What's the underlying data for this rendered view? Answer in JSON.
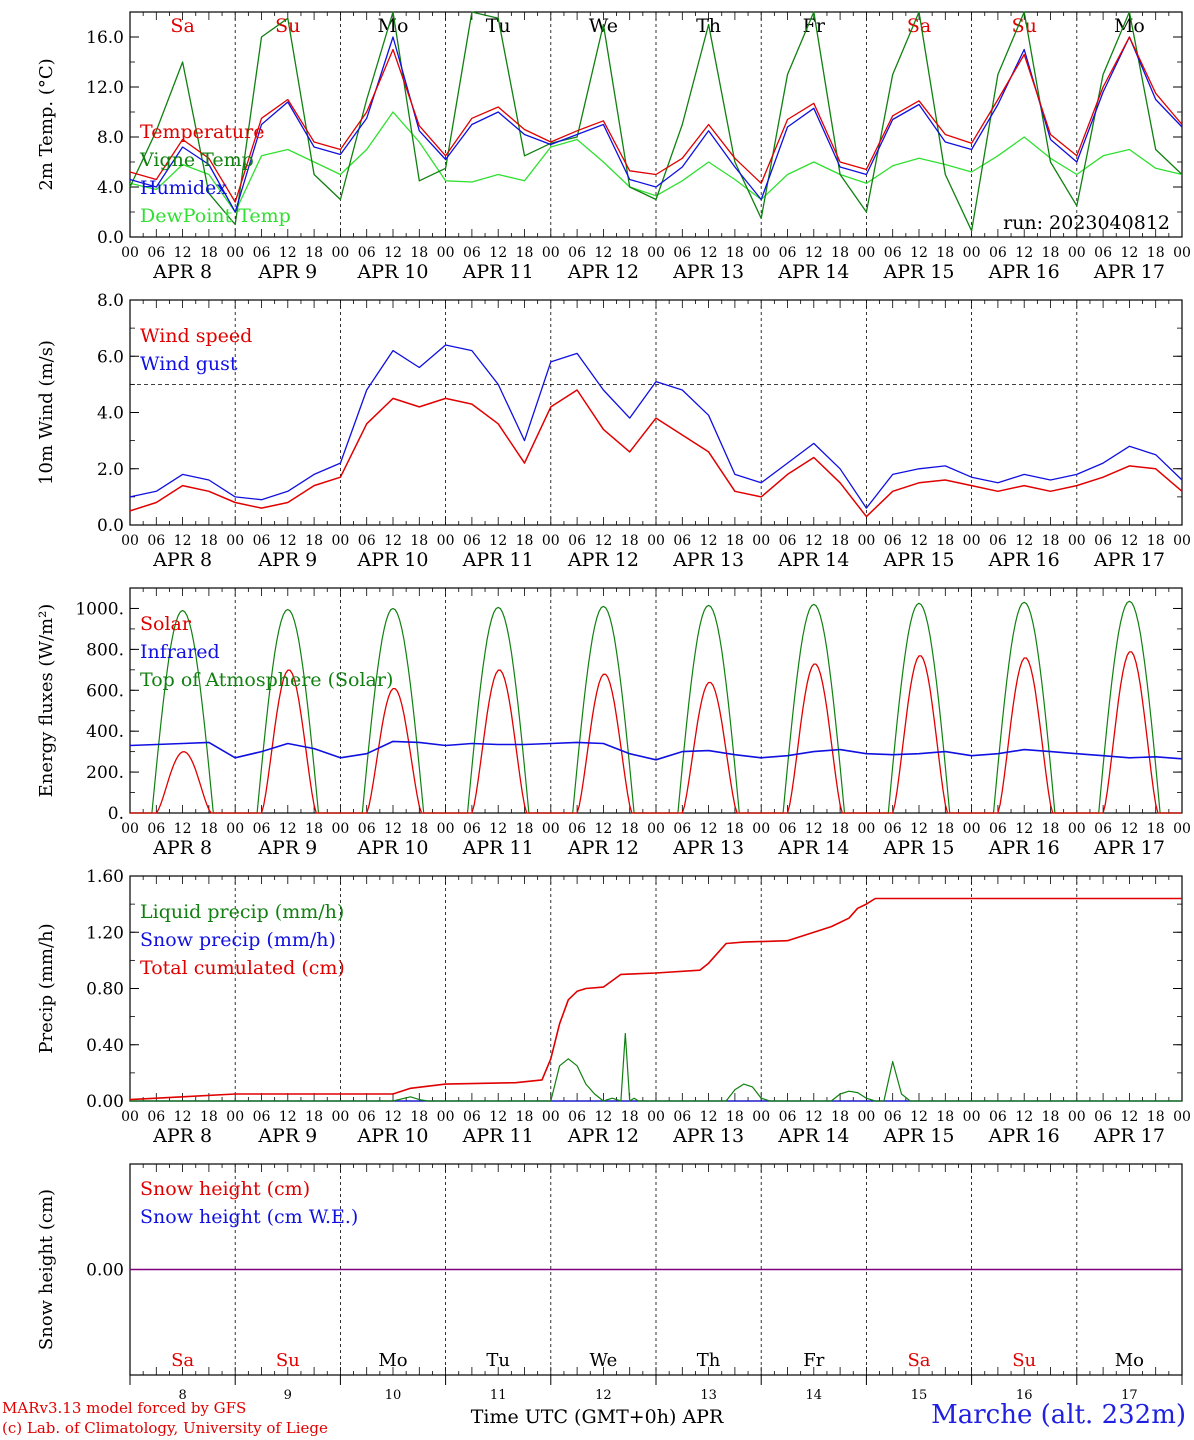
{
  "footer": {
    "model_line": "MARv3.13 model forced by GFS",
    "lab_line": "(c) Lab. of Climatology, University of Liege",
    "xaxis_title": "Time UTC (GMT+0h) APR",
    "station": "Marche (alt. 232m)"
  },
  "colors": {
    "red": "#e00000",
    "green": "#108010",
    "blue": "#1010e0",
    "lightgreen": "#30e030",
    "purple": "#800080"
  },
  "chart_data": [
    {
      "type": "line",
      "ylabel": "2m Temp. (°C)",
      "ylim": [
        0,
        18
      ],
      "yticks": [
        "0.0",
        "4.0",
        "8.0",
        "12.0",
        "16.0"
      ],
      "ytick_values": [
        0,
        4,
        8,
        12,
        16
      ],
      "run_label": "run: 2023040812",
      "weekdays": [
        "Sa",
        "Su",
        "Mo",
        "Tu",
        "We",
        "Th",
        "Fr",
        "Sa",
        "Su",
        "Mo"
      ],
      "weekday_colors": [
        "#e00000",
        "#e00000",
        "#000000",
        "#000000",
        "#000000",
        "#000000",
        "#000000",
        "#e00000",
        "#e00000",
        "#000000"
      ],
      "hour_labels": [
        "00",
        "06",
        "12",
        "18"
      ],
      "day_labels": [
        "APR 8",
        "APR 9",
        "APR 10",
        "APR 11",
        "APR 12",
        "APR 13",
        "APR 14",
        "APR 15",
        "APR 16",
        "APR 17"
      ],
      "x_unit": "hours since APR 8 00 UTC",
      "series": [
        {
          "name": "Temperature",
          "color": "#e00000",
          "x": [
            0,
            6,
            12,
            18,
            24,
            30,
            36,
            42,
            48,
            54,
            60,
            66,
            72,
            78,
            84,
            90,
            96,
            102,
            108,
            114,
            120,
            126,
            132,
            138,
            144,
            150,
            156,
            162,
            168,
            174,
            180,
            186,
            192,
            198,
            204,
            210,
            216,
            222,
            228,
            234,
            240
          ],
          "values": [
            5.2,
            4.6,
            7.8,
            6.3,
            2.8,
            9.5,
            11.0,
            7.6,
            7.0,
            10.0,
            15.0,
            8.9,
            6.5,
            9.5,
            10.4,
            8.6,
            7.6,
            8.5,
            9.3,
            5.3,
            5.0,
            6.3,
            9.0,
            6.3,
            4.3,
            9.4,
            10.7,
            6.0,
            5.4,
            9.7,
            10.9,
            8.2,
            7.5,
            11.0,
            14.6,
            8.2,
            6.5,
            12.0,
            16.0,
            11.5,
            9.0
          ]
        },
        {
          "name": "Vigne Temp",
          "color": "#108010",
          "x": [
            0,
            6,
            12,
            18,
            24,
            30,
            36,
            42,
            48,
            54,
            60,
            66,
            72,
            78,
            84,
            90,
            96,
            102,
            108,
            114,
            120,
            126,
            132,
            138,
            144,
            150,
            156,
            162,
            168,
            174,
            180,
            186,
            192,
            198,
            204,
            210,
            216,
            222,
            228,
            234,
            240
          ],
          "values": [
            4.0,
            8.5,
            14.0,
            3.5,
            1.0,
            16.0,
            17.5,
            5.0,
            3.0,
            11.0,
            18.0,
            4.5,
            5.5,
            18.0,
            17.5,
            6.5,
            7.5,
            8.0,
            17.0,
            4.0,
            3.0,
            9.0,
            17.0,
            6.0,
            1.5,
            13.0,
            18.0,
            5.0,
            2.0,
            13.0,
            18.0,
            5.0,
            0.5,
            13.0,
            18.0,
            6.0,
            2.5,
            13.0,
            18.0,
            7.0,
            5.0
          ]
        },
        {
          "name": "Humidex",
          "color": "#1010e0",
          "x": [
            0,
            6,
            12,
            18,
            24,
            30,
            36,
            42,
            48,
            54,
            60,
            66,
            72,
            78,
            84,
            90,
            96,
            102,
            108,
            114,
            120,
            126,
            132,
            138,
            144,
            150,
            156,
            162,
            168,
            174,
            180,
            186,
            192,
            198,
            204,
            210,
            216,
            222,
            228,
            234,
            240
          ],
          "values": [
            4.6,
            4.0,
            7.2,
            5.8,
            2.0,
            9.0,
            10.8,
            7.2,
            6.6,
            9.5,
            16.0,
            8.5,
            6.2,
            9.0,
            10.0,
            8.2,
            7.4,
            8.2,
            9.0,
            4.6,
            4.0,
            5.6,
            8.5,
            5.6,
            3.0,
            8.8,
            10.3,
            5.6,
            5.0,
            9.4,
            10.6,
            7.6,
            7.0,
            10.6,
            15.0,
            7.8,
            6.0,
            11.6,
            16.0,
            11.0,
            8.8
          ]
        },
        {
          "name": "DewPoint Temp",
          "color": "#30e030",
          "x": [
            0,
            6,
            12,
            18,
            24,
            30,
            36,
            42,
            48,
            54,
            60,
            66,
            72,
            78,
            84,
            90,
            96,
            102,
            108,
            114,
            120,
            126,
            132,
            138,
            144,
            150,
            156,
            162,
            168,
            174,
            180,
            186,
            192,
            198,
            204,
            210,
            216,
            222,
            228,
            234,
            240
          ],
          "values": [
            4.3,
            3.8,
            5.8,
            5.0,
            2.0,
            6.5,
            7.0,
            6.0,
            5.0,
            7.0,
            10.0,
            7.6,
            4.5,
            4.4,
            5.0,
            4.5,
            7.2,
            7.8,
            6.0,
            4.0,
            3.3,
            4.5,
            6.0,
            4.6,
            3.0,
            5.0,
            6.0,
            5.0,
            4.3,
            5.7,
            6.3,
            5.8,
            5.2,
            6.5,
            8.0,
            6.3,
            5.0,
            6.5,
            7.0,
            5.5,
            5.0
          ]
        }
      ]
    },
    {
      "type": "line",
      "ylabel": "10m Wind (m/s)",
      "ylim": [
        0,
        8
      ],
      "yticks": [
        "0.0",
        "2.0",
        "4.0",
        "6.0",
        "8.0"
      ],
      "ytick_values": [
        0,
        2,
        4,
        6,
        8
      ],
      "reference_line": 5,
      "hour_labels": [
        "00",
        "06",
        "12",
        "18"
      ],
      "day_labels": [
        "APR 8",
        "APR 9",
        "APR 10",
        "APR 11",
        "APR 12",
        "APR 13",
        "APR 14",
        "APR 15",
        "APR 16",
        "APR 17"
      ],
      "x_unit": "hours since APR 8 00 UTC",
      "series": [
        {
          "name": "Wind speed",
          "color": "#e00000",
          "x": [
            0,
            6,
            12,
            18,
            24,
            30,
            36,
            42,
            48,
            54,
            60,
            66,
            72,
            78,
            84,
            90,
            96,
            102,
            108,
            114,
            120,
            126,
            132,
            138,
            144,
            150,
            156,
            162,
            168,
            174,
            180,
            186,
            192,
            198,
            204,
            210,
            216,
            222,
            228,
            234,
            240
          ],
          "values": [
            0.5,
            0.8,
            1.4,
            1.2,
            0.8,
            0.6,
            0.8,
            1.4,
            1.7,
            3.6,
            4.5,
            4.2,
            4.5,
            4.3,
            3.6,
            2.2,
            4.2,
            4.8,
            3.4,
            2.6,
            3.8,
            3.2,
            2.6,
            1.2,
            1.0,
            1.8,
            2.4,
            1.5,
            0.3,
            1.2,
            1.5,
            1.6,
            1.4,
            1.2,
            1.4,
            1.2,
            1.4,
            1.7,
            2.1,
            2.0,
            1.2
          ]
        },
        {
          "name": "Wind gust",
          "color": "#1010e0",
          "x": [
            0,
            6,
            12,
            18,
            24,
            30,
            36,
            42,
            48,
            54,
            60,
            66,
            72,
            78,
            84,
            90,
            96,
            102,
            108,
            114,
            120,
            126,
            132,
            138,
            144,
            150,
            156,
            162,
            168,
            174,
            180,
            186,
            192,
            198,
            204,
            210,
            216,
            222,
            228,
            234,
            240
          ],
          "values": [
            1.0,
            1.2,
            1.8,
            1.6,
            1.0,
            0.9,
            1.2,
            1.8,
            2.2,
            4.8,
            6.2,
            5.6,
            6.4,
            6.2,
            5.0,
            3.0,
            5.8,
            6.1,
            4.8,
            3.8,
            5.1,
            4.8,
            3.9,
            1.8,
            1.5,
            2.2,
            2.9,
            2.0,
            0.6,
            1.8,
            2.0,
            2.1,
            1.7,
            1.5,
            1.8,
            1.6,
            1.8,
            2.2,
            2.8,
            2.5,
            1.6
          ]
        }
      ]
    },
    {
      "type": "line",
      "ylabel": "Energy fluxes (W/m²)",
      "ylim": [
        0,
        1100
      ],
      "yticks": [
        "0.",
        "200.",
        "400.",
        "600.",
        "800.",
        "1000."
      ],
      "ytick_values": [
        0,
        200,
        400,
        600,
        800,
        1000
      ],
      "hour_labels": [
        "00",
        "06",
        "12",
        "18"
      ],
      "day_labels": [
        "APR 8",
        "APR 9",
        "APR 10",
        "APR 11",
        "APR 12",
        "APR 13",
        "APR 14",
        "APR 15",
        "APR 16",
        "APR 17"
      ],
      "x_unit": "hours since APR 8 00 UTC",
      "series": [
        {
          "name": "Solar",
          "color": "#e00000",
          "peak_hour": 12,
          "daily_peaks": [
            300,
            700,
            610,
            700,
            680,
            640,
            730,
            770,
            760,
            790
          ]
        },
        {
          "name": "Infrared",
          "color": "#1010e0",
          "x": [
            0,
            6,
            12,
            18,
            24,
            30,
            36,
            42,
            48,
            54,
            60,
            66,
            72,
            78,
            84,
            90,
            96,
            102,
            108,
            114,
            120,
            126,
            132,
            138,
            144,
            150,
            156,
            162,
            168,
            174,
            180,
            186,
            192,
            198,
            204,
            210,
            216,
            222,
            228,
            234,
            240
          ],
          "values": [
            330,
            335,
            340,
            345,
            270,
            300,
            340,
            315,
            270,
            290,
            350,
            345,
            330,
            340,
            335,
            335,
            340,
            345,
            340,
            290,
            260,
            300,
            305,
            285,
            270,
            280,
            300,
            310,
            290,
            285,
            290,
            300,
            280,
            290,
            310,
            300,
            290,
            280,
            270,
            275,
            265
          ]
        },
        {
          "name": "Top of Atmosphere (Solar)",
          "color": "#108010",
          "peak_hour": 12,
          "daily_peaks": [
            990,
            995,
            1000,
            1005,
            1010,
            1015,
            1020,
            1025,
            1030,
            1035
          ]
        }
      ]
    },
    {
      "type": "line",
      "ylabel": "Precip (mm/h)",
      "ylim": [
        0,
        1.6
      ],
      "yticks": [
        "0.00",
        "0.40",
        "0.80",
        "1.20",
        "1.60"
      ],
      "ytick_values": [
        0,
        0.4,
        0.8,
        1.2,
        1.6
      ],
      "hour_labels": [
        "00",
        "06",
        "12",
        "18"
      ],
      "day_labels": [
        "APR 8",
        "APR 9",
        "APR 10",
        "APR 11",
        "APR 12",
        "APR 13",
        "APR 14",
        "APR 15",
        "APR 16",
        "APR 17"
      ],
      "x_unit": "hours since APR 8 00 UTC",
      "series": [
        {
          "name": "Liquid precip (mm/h)",
          "color": "#108010",
          "x": [
            0,
            60,
            64,
            66,
            68,
            96,
            98,
            100,
            102,
            104,
            106,
            108,
            110,
            112,
            113,
            114,
            115,
            116,
            118,
            120,
            136,
            138,
            140,
            142,
            144,
            146,
            160,
            162,
            164,
            166,
            168,
            170,
            172,
            174,
            176,
            178,
            240
          ],
          "values": [
            0,
            0,
            0.03,
            0.01,
            0,
            0,
            0.25,
            0.3,
            0.25,
            0.12,
            0.05,
            0,
            0.02,
            0,
            0.48,
            0,
            0.02,
            0,
            0,
            0,
            0,
            0.08,
            0.12,
            0.1,
            0.02,
            0,
            0,
            0.05,
            0.07,
            0.06,
            0.02,
            0,
            0,
            0.28,
            0.05,
            0,
            0
          ]
        },
        {
          "name": "Snow precip (mm/h)",
          "color": "#1010e0",
          "x": [
            0,
            240
          ],
          "values": [
            0,
            0
          ]
        },
        {
          "name": "Total cumulated (cm)",
          "color": "#e00000",
          "x": [
            0,
            12,
            24,
            60,
            64,
            72,
            88,
            94,
            96,
            98,
            100,
            102,
            104,
            108,
            112,
            120,
            130,
            132,
            136,
            140,
            150,
            160,
            164,
            166,
            168,
            170,
            240
          ],
          "values": [
            0.01,
            0.03,
            0.05,
            0.05,
            0.09,
            0.12,
            0.13,
            0.15,
            0.3,
            0.55,
            0.72,
            0.78,
            0.8,
            0.81,
            0.9,
            0.91,
            0.93,
            0.98,
            1.12,
            1.13,
            1.14,
            1.24,
            1.3,
            1.37,
            1.4,
            1.44,
            1.44
          ]
        }
      ]
    },
    {
      "type": "line",
      "ylabel": "Snow height (cm)",
      "ylim": [
        -1,
        1
      ],
      "yticks": [
        "0.00"
      ],
      "ytick_values": [
        0
      ],
      "weekdays": [
        "Sa",
        "Su",
        "Mo",
        "Tu",
        "We",
        "Th",
        "Fr",
        "Sa",
        "Su",
        "Mo"
      ],
      "weekday_colors": [
        "#e00000",
        "#e00000",
        "#000000",
        "#000000",
        "#000000",
        "#000000",
        "#000000",
        "#e00000",
        "#e00000",
        "#000000"
      ],
      "day_numbers": [
        "8",
        "9",
        "10",
        "11",
        "12",
        "13",
        "14",
        "15",
        "16",
        "17"
      ],
      "x_unit": "hours since APR 8 00 UTC",
      "series": [
        {
          "name": "Snow height (cm)",
          "color": "#e00000",
          "x": [
            0,
            240
          ],
          "values": [
            0,
            0
          ]
        },
        {
          "name": "Snow height (cm W.E.)",
          "color": "#1010e0",
          "x": [
            0,
            240
          ],
          "values": [
            0,
            0
          ]
        }
      ]
    }
  ]
}
